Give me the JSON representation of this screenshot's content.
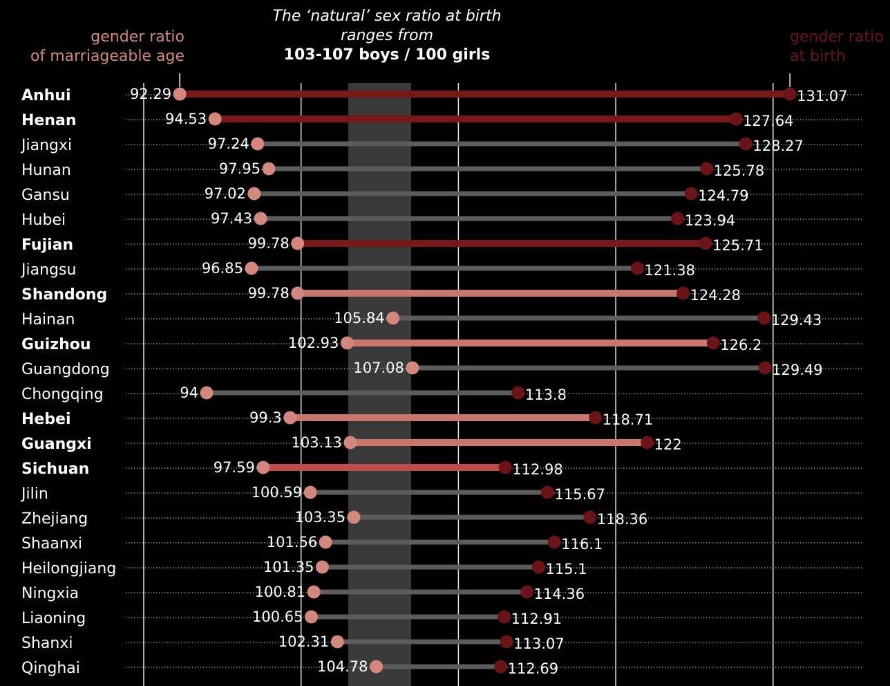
{
  "annotations": {
    "left_line1": "gender ratio",
    "left_line2": "of marriageable age",
    "right_line1": "gender ratio",
    "right_line2": "at birth",
    "center_line1": "The ‘natural’ sex ratio at birth",
    "center_line2": "ranges from",
    "center_line3": "103-107 boys / 100 girls"
  },
  "colors": {
    "background": "#000000",
    "dot_marriageable": "#d4877f",
    "dot_birth": "#6b1417",
    "bar_dark": "#7a1719",
    "bar_light": "#c9766f",
    "bar_mid": "#c24a4a",
    "bar_gray": "#5c5c5c",
    "natural_band": "#3a3a3a"
  },
  "chart_data": {
    "type": "dumbbell",
    "natural_range": [
      103,
      107
    ],
    "gridlines": [
      90,
      100,
      110,
      120,
      130
    ],
    "rows": [
      {
        "province": "Anhui",
        "bold": true,
        "marriageable": 92.29,
        "birth": 131.07,
        "highlight": "dark"
      },
      {
        "province": "Henan",
        "bold": true,
        "marriageable": 94.53,
        "birth": 127.64,
        "highlight": "dark"
      },
      {
        "province": "Jiangxi",
        "bold": false,
        "marriageable": 97.24,
        "birth": 128.27,
        "highlight": "gray"
      },
      {
        "province": "Hunan",
        "bold": false,
        "marriageable": 97.95,
        "birth": 125.78,
        "highlight": "gray"
      },
      {
        "province": "Gansu",
        "bold": false,
        "marriageable": 97.02,
        "birth": 124.79,
        "highlight": "gray"
      },
      {
        "province": "Hubei",
        "bold": false,
        "marriageable": 97.43,
        "birth": 123.94,
        "highlight": "gray"
      },
      {
        "province": "Fujian",
        "bold": true,
        "marriageable": 99.78,
        "birth": 125.71,
        "highlight": "dark"
      },
      {
        "province": "Jiangsu",
        "bold": false,
        "marriageable": 96.85,
        "birth": 121.38,
        "highlight": "gray"
      },
      {
        "province": "Shandong",
        "bold": true,
        "marriageable": 99.78,
        "birth": 124.28,
        "highlight": "light"
      },
      {
        "province": "Hainan",
        "bold": false,
        "marriageable": 105.84,
        "birth": 129.43,
        "highlight": "gray"
      },
      {
        "province": "Guizhou",
        "bold": true,
        "marriageable": 102.93,
        "birth": 126.2,
        "highlight": "light"
      },
      {
        "province": "Guangdong",
        "bold": false,
        "marriageable": 107.08,
        "birth": 129.49,
        "highlight": "gray"
      },
      {
        "province": "Chongqing",
        "bold": false,
        "marriageable": 94,
        "birth": 113.8,
        "highlight": "gray"
      },
      {
        "province": "Hebei",
        "bold": true,
        "marriageable": 99.3,
        "birth": 118.71,
        "highlight": "light"
      },
      {
        "province": "Guangxi",
        "bold": true,
        "marriageable": 103.13,
        "birth": 122,
        "highlight": "light"
      },
      {
        "province": "Sichuan",
        "bold": true,
        "marriageable": 97.59,
        "birth": 112.98,
        "highlight": "mid"
      },
      {
        "province": "Jilin",
        "bold": false,
        "marriageable": 100.59,
        "birth": 115.67,
        "highlight": "gray"
      },
      {
        "province": "Zhejiang",
        "bold": false,
        "marriageable": 103.35,
        "birth": 118.36,
        "highlight": "gray"
      },
      {
        "province": "Shaanxi",
        "bold": false,
        "marriageable": 101.56,
        "birth": 116.1,
        "highlight": "gray"
      },
      {
        "province": "Heilongjiang",
        "bold": false,
        "marriageable": 101.35,
        "birth": 115.1,
        "highlight": "gray"
      },
      {
        "province": "Ningxia",
        "bold": false,
        "marriageable": 100.81,
        "birth": 114.36,
        "highlight": "gray"
      },
      {
        "province": "Liaoning",
        "bold": false,
        "marriageable": 100.65,
        "birth": 112.91,
        "highlight": "gray"
      },
      {
        "province": "Shanxi",
        "bold": false,
        "marriageable": 102.31,
        "birth": 113.07,
        "highlight": "gray"
      },
      {
        "province": "Qinghai",
        "bold": false,
        "marriageable": 104.78,
        "birth": 112.69,
        "highlight": "gray"
      }
    ]
  }
}
